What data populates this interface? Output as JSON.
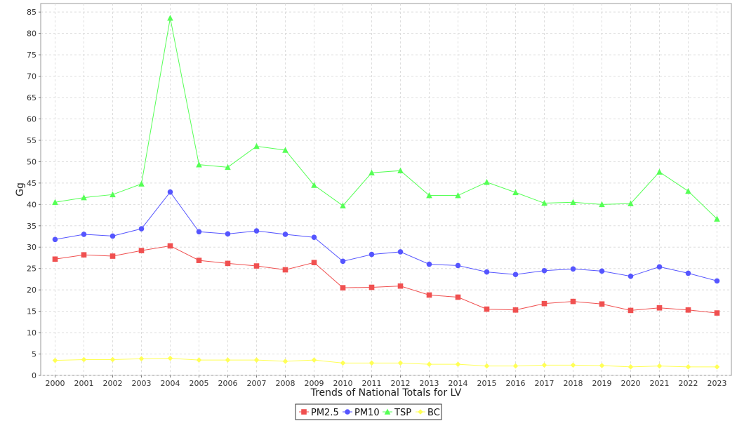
{
  "chart_data": {
    "type": "line",
    "xlabel": "Trends of National Totals for LV",
    "ylabel": "Gg",
    "ylim": [
      0,
      87
    ],
    "yticks": [
      0,
      5,
      10,
      15,
      20,
      25,
      30,
      35,
      40,
      45,
      50,
      55,
      60,
      65,
      70,
      75,
      80,
      85
    ],
    "grid": true,
    "legend_position": "bottom",
    "categories": [
      "2000",
      "2001",
      "2002",
      "2003",
      "2004",
      "2005",
      "2006",
      "2007",
      "2008",
      "2009",
      "2010",
      "2011",
      "2012",
      "2013",
      "2014",
      "2015",
      "2016",
      "2017",
      "2018",
      "2019",
      "2020",
      "2021",
      "2022",
      "2023"
    ],
    "series": [
      {
        "name": "PM2.5",
        "color": "#f05050",
        "marker": "square",
        "values": [
          27.2,
          28.2,
          27.9,
          29.2,
          30.3,
          26.9,
          26.2,
          25.6,
          24.7,
          26.4,
          20.5,
          20.6,
          20.9,
          18.8,
          18.3,
          15.5,
          15.3,
          16.8,
          17.3,
          16.7,
          15.2,
          15.8,
          15.3,
          14.6
        ]
      },
      {
        "name": "PM10",
        "color": "#5555ff",
        "marker": "circle",
        "values": [
          31.8,
          33.0,
          32.6,
          34.3,
          42.9,
          33.6,
          33.1,
          33.8,
          33.0,
          32.3,
          26.7,
          28.3,
          28.9,
          26.0,
          25.7,
          24.2,
          23.6,
          24.5,
          24.9,
          24.4,
          23.2,
          25.4,
          23.9,
          22.1
        ]
      },
      {
        "name": "TSP",
        "color": "#55ff55",
        "marker": "triangle",
        "values": [
          40.5,
          41.6,
          42.3,
          44.8,
          83.6,
          49.3,
          48.7,
          53.6,
          52.7,
          44.5,
          39.7,
          47.4,
          47.9,
          42.1,
          42.1,
          45.2,
          42.8,
          40.3,
          40.5,
          40.0,
          40.2,
          47.6,
          43.1,
          36.6
        ]
      },
      {
        "name": "BC",
        "color": "#ffff55",
        "marker": "diamond",
        "values": [
          3.5,
          3.7,
          3.7,
          3.9,
          4.0,
          3.6,
          3.6,
          3.6,
          3.3,
          3.6,
          2.9,
          2.9,
          2.9,
          2.6,
          2.6,
          2.2,
          2.2,
          2.4,
          2.4,
          2.3,
          2.0,
          2.2,
          2.0,
          2.0
        ]
      }
    ]
  }
}
